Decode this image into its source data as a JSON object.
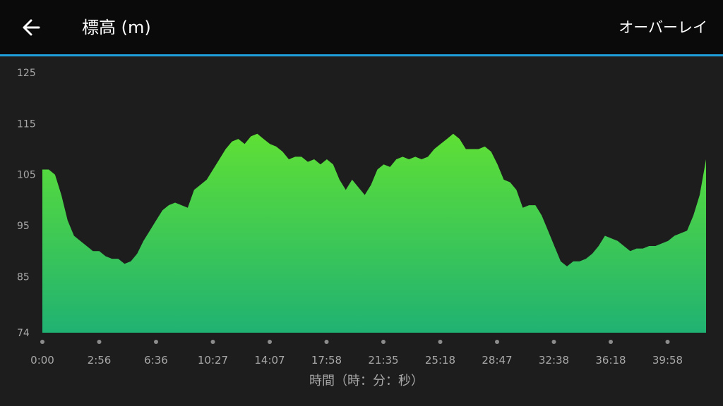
{
  "header": {
    "title": "標高 (m)",
    "back_icon": "arrow-left-icon",
    "overlay_label": "オーバーレイ"
  },
  "colors": {
    "header_bg": "#0a0a0a",
    "accent": "#1fa0dc",
    "background": "#1d1d1d",
    "fill_top": "#5fe035",
    "fill_bottom": "#20b272",
    "text_muted": "#a8a8a8",
    "dot": "#8c8c8c"
  },
  "chart_data": {
    "type": "area",
    "xlabel": "時間（時：分：秒）",
    "ylim": [
      74,
      125
    ],
    "y_ticks": [
      "125",
      "115",
      "105",
      "95",
      "85",
      "74"
    ],
    "x_ticks": [
      "0:00",
      "2:56",
      "6:36",
      "10:27",
      "14:07",
      "17:58",
      "21:35",
      "25:18",
      "28:47",
      "32:38",
      "36:18",
      "39:58"
    ],
    "series": [
      {
        "values": [
          106,
          106,
          105,
          101,
          96,
          93,
          92,
          91,
          90,
          90,
          89,
          88.5,
          88.5,
          87.5,
          88,
          89.5,
          92,
          94,
          96,
          98,
          99,
          99.5,
          99,
          98.5,
          102,
          103,
          104,
          106,
          108,
          110,
          111.5,
          112,
          111,
          112.5,
          113,
          112,
          111,
          110.5,
          109.5,
          108,
          108.5,
          108.5,
          107.5,
          108,
          107,
          108,
          107,
          104,
          102,
          104,
          102.5,
          101,
          103,
          106,
          107,
          106.5,
          108,
          108.5,
          108,
          108.5,
          108,
          108.5,
          110,
          111,
          112,
          113,
          112,
          110,
          110,
          110,
          110.5,
          109.5,
          107,
          104,
          103.5,
          102,
          98.5,
          99,
          99,
          97,
          94,
          91,
          88,
          87,
          88,
          88,
          88.5,
          89.5,
          91,
          93,
          92.5,
          92,
          91,
          90,
          90.5,
          90.5,
          91,
          91,
          91.5,
          92,
          93,
          93.5,
          94,
          97,
          101,
          108
        ]
      }
    ]
  }
}
